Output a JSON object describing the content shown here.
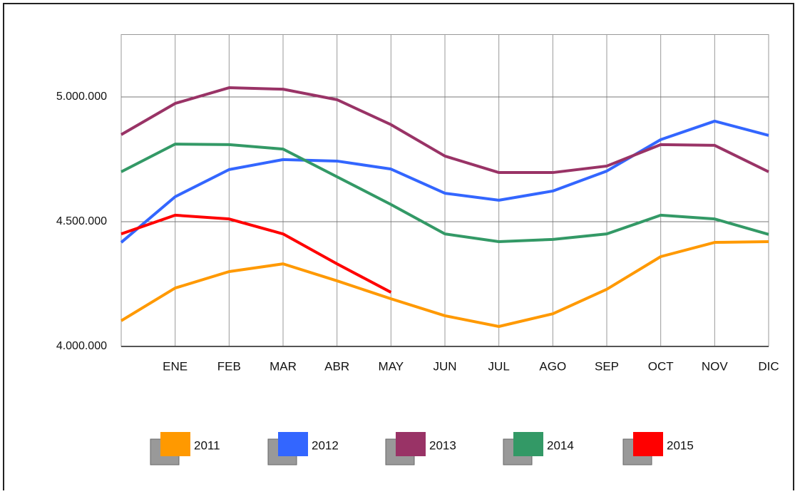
{
  "chart_data": {
    "type": "line",
    "categories": [
      null,
      "ENE",
      "FEB",
      "MAR",
      "ABR",
      "MAY",
      "JUN",
      "JUL",
      "AGO",
      "SEP",
      "OCT",
      "NOV",
      "DIC"
    ],
    "series": [
      {
        "name": "2011",
        "color": "#ff9900",
        "values": [
          4103000,
          4234000,
          4300000,
          4331000,
          4263000,
          4191000,
          4123000,
          4080000,
          4131000,
          4229000,
          4360000,
          4417000,
          4420000
        ]
      },
      {
        "name": "2012",
        "color": "#3366ff",
        "values": [
          4417000,
          4600000,
          4709000,
          4749000,
          4743000,
          4711000,
          4614000,
          4586000,
          4623000,
          4703000,
          4829000,
          4903000,
          4846000
        ]
      },
      {
        "name": "2013",
        "color": "#993366",
        "values": [
          4849000,
          4974000,
          5037000,
          5031000,
          4989000,
          4889000,
          4763000,
          4697000,
          4697000,
          4723000,
          4809000,
          4806000,
          4700000
        ]
      },
      {
        "name": "2014",
        "color": "#339966",
        "values": [
          4700000,
          4811000,
          4809000,
          4791000,
          4680000,
          4569000,
          4451000,
          4420000,
          4429000,
          4451000,
          4526000,
          4511000,
          4449000
        ]
      },
      {
        "name": "2015",
        "color": "#ff0000",
        "values": [
          4451000,
          4526000,
          4511000,
          4451000,
          4331000,
          4217000,
          null,
          null,
          null,
          null,
          null,
          null,
          null
        ]
      }
    ],
    "ylim": [
      4000000,
      5250000
    ],
    "yticks": [
      {
        "value": 4000000,
        "label": "4.000.000"
      },
      {
        "value": 4500000,
        "label": "4.500.000"
      },
      {
        "value": 5000000,
        "label": "5.000.000"
      }
    ],
    "grid": true,
    "legend": "bottom"
  }
}
